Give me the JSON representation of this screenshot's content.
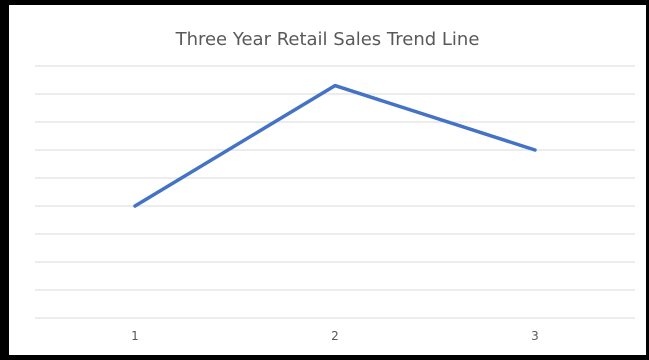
{
  "chart_data": {
    "type": "line",
    "title": "Three Year Retail Sales Trend Line",
    "xlabel": "",
    "ylabel": "",
    "x": [
      "1",
      "2",
      "3"
    ],
    "series": [
      {
        "values": [
          4,
          8.3,
          6
        ]
      }
    ],
    "ylim": [
      0,
      9
    ],
    "y_tick_step": 1,
    "grid": true,
    "y_axis_labels_visible": false,
    "colors": {
      "line": "#4472c4",
      "grid": "#d9d9d9",
      "text": "#595959"
    }
  }
}
